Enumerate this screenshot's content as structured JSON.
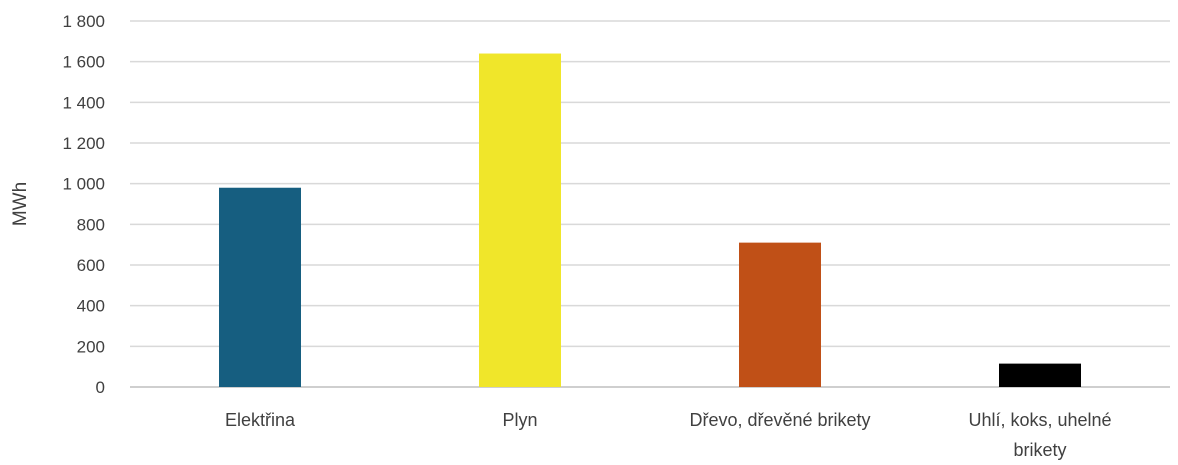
{
  "chart_data": {
    "type": "bar",
    "categories": [
      [
        "Elektřina"
      ],
      [
        "Plyn"
      ],
      [
        "Dřevo, dřevěné brikety"
      ],
      [
        "Uhlí, koks, uhelné",
        "brikety"
      ]
    ],
    "values": [
      980,
      1640,
      710,
      115
    ],
    "colors": [
      "#165e80",
      "#f0e62a",
      "#c05017",
      "#000000"
    ],
    "ylabel": "MWh",
    "ylim": [
      0,
      1800
    ],
    "yticks": [
      {
        "value": 0,
        "label": "0"
      },
      {
        "value": 200,
        "label": "200"
      },
      {
        "value": 400,
        "label": "400"
      },
      {
        "value": 600,
        "label": "600"
      },
      {
        "value": 800,
        "label": "800"
      },
      {
        "value": 1000,
        "label": "1 000"
      },
      {
        "value": 1200,
        "label": "1 200"
      },
      {
        "value": 1400,
        "label": "1 400"
      },
      {
        "value": 1600,
        "label": "1 600"
      },
      {
        "value": 1800,
        "label": "1 800"
      }
    ],
    "grid": true,
    "legend": "none"
  }
}
